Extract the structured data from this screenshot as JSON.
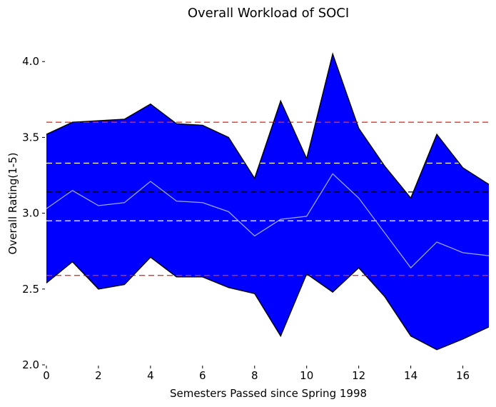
{
  "chart_data": {
    "type": "area",
    "title": "Overall Workload of SOCI",
    "xlabel": "Semesters Passed since Spring 1998",
    "ylabel": "Overall Rating(1-5)",
    "xlim": [
      0,
      17
    ],
    "ylim": [
      2.0,
      4.1
    ],
    "xticks": [
      0,
      2,
      4,
      6,
      8,
      10,
      12,
      14,
      16
    ],
    "yticks": [
      2.0,
      2.5,
      3.0,
      3.5,
      4.0
    ],
    "x": [
      0,
      1,
      2,
      3,
      4,
      5,
      6,
      7,
      8,
      9,
      10,
      11,
      12,
      13,
      14,
      15,
      16,
      17
    ],
    "series": [
      {
        "role": "upper",
        "values": [
          3.52,
          3.6,
          3.61,
          3.62,
          3.72,
          3.59,
          3.58,
          3.5,
          3.23,
          3.74,
          3.36,
          4.05,
          3.56,
          3.31,
          3.1,
          3.52,
          3.3,
          3.19
        ]
      },
      {
        "role": "mean",
        "values": [
          3.03,
          3.15,
          3.05,
          3.07,
          3.21,
          3.08,
          3.07,
          3.01,
          2.85,
          2.96,
          2.98,
          3.26,
          3.1,
          2.87,
          2.64,
          2.81,
          2.74,
          2.72
        ]
      },
      {
        "role": "lower",
        "values": [
          2.54,
          2.68,
          2.5,
          2.53,
          2.71,
          2.58,
          2.58,
          2.51,
          2.47,
          2.19,
          2.6,
          2.48,
          2.64,
          2.45,
          2.19,
          2.1,
          2.17,
          2.25
        ]
      }
    ],
    "reference_lines": [
      {
        "y": 3.6,
        "color": "#e8302a",
        "style": "dashed"
      },
      {
        "y": 3.33,
        "color": "#ffffff",
        "style": "dashed"
      },
      {
        "y": 3.14,
        "color": "#000000",
        "style": "dashed"
      },
      {
        "y": 2.95,
        "color": "#ffffff",
        "style": "dashed"
      },
      {
        "y": 2.59,
        "color": "#e8302a",
        "style": "dashed"
      }
    ],
    "colors": {
      "fill": "#0000ff",
      "outline": "#000000",
      "mean_line": "#9aa6ff"
    },
    "grid": false
  }
}
